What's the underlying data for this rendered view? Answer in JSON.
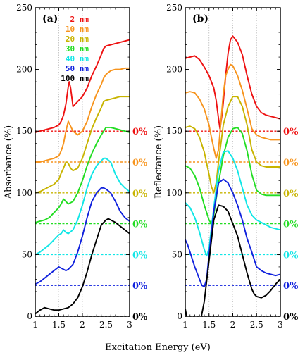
{
  "chart_data": [
    {
      "type": "line",
      "panel_label": "(a)",
      "ylabel": "Absorbance (%)",
      "xlabel": "",
      "xlim": [
        1,
        3
      ],
      "ylim": [
        0,
        250
      ],
      "xticks": [
        "1",
        "1.5",
        "2",
        "2.5",
        "3"
      ],
      "yticks": [
        "0",
        "50",
        "100",
        "150",
        "200",
        "250"
      ],
      "legend_placement": "top-left",
      "grid": "vertical dotted lines",
      "series": [
        {
          "name": "2 nm",
          "color": "#ee1111",
          "baseline": 150,
          "baseline_label": "0%",
          "x": [
            1.0,
            1.1,
            1.2,
            1.3,
            1.4,
            1.5,
            1.55,
            1.6,
            1.65,
            1.7,
            1.72,
            1.75,
            1.8,
            1.9,
            2.0,
            2.1,
            2.2,
            2.3,
            2.4,
            2.45,
            2.5,
            2.6,
            2.7,
            2.8,
            2.9,
            3.0
          ],
          "y": [
            149,
            150,
            151,
            152,
            153,
            155,
            158,
            163,
            172,
            186,
            190,
            185,
            170,
            174,
            178,
            185,
            195,
            203,
            212,
            217,
            219,
            220,
            221,
            222,
            223,
            224
          ]
        },
        {
          "name": "10 nm",
          "color": "#f7941d",
          "baseline": 125,
          "baseline_label": "0%",
          "x": [
            1.0,
            1.1,
            1.2,
            1.3,
            1.4,
            1.5,
            1.55,
            1.6,
            1.65,
            1.7,
            1.75,
            1.8,
            1.9,
            2.0,
            2.1,
            2.2,
            2.3,
            2.4,
            2.45,
            2.5,
            2.6,
            2.7,
            2.8,
            2.9,
            3.0
          ],
          "y": [
            125,
            125,
            126,
            127,
            128,
            130,
            134,
            140,
            150,
            158,
            154,
            150,
            147,
            150,
            158,
            170,
            180,
            188,
            193,
            196,
            199,
            200,
            200,
            201,
            201
          ]
        },
        {
          "name": "20 nm",
          "color": "#c8b400",
          "baseline": 100,
          "baseline_label": "0%",
          "x": [
            1.0,
            1.1,
            1.2,
            1.3,
            1.4,
            1.5,
            1.55,
            1.6,
            1.65,
            1.7,
            1.75,
            1.8,
            1.9,
            2.0,
            2.1,
            2.2,
            2.3,
            2.4,
            2.45,
            2.5,
            2.6,
            2.7,
            2.8,
            2.9,
            3.0
          ],
          "y": [
            100,
            101,
            103,
            105,
            107,
            111,
            116,
            120,
            125,
            124,
            120,
            118,
            120,
            128,
            140,
            152,
            161,
            169,
            174,
            175,
            176,
            177,
            178,
            178,
            178
          ]
        },
        {
          "name": "30 nm",
          "color": "#22dd22",
          "baseline": 75,
          "baseline_label": "0%",
          "x": [
            1.0,
            1.1,
            1.2,
            1.3,
            1.4,
            1.5,
            1.55,
            1.6,
            1.65,
            1.7,
            1.8,
            1.9,
            2.0,
            2.1,
            2.2,
            2.3,
            2.4,
            2.45,
            2.5,
            2.6,
            2.7,
            2.8,
            2.9,
            3.0
          ],
          "y": [
            76,
            77,
            78,
            80,
            84,
            88,
            91,
            95,
            93,
            91,
            93,
            100,
            110,
            122,
            132,
            140,
            147,
            150,
            153,
            153,
            152,
            151,
            150,
            149
          ]
        },
        {
          "name": "40 nm",
          "color": "#11e6e6",
          "baseline": 50,
          "baseline_label": "0%",
          "x": [
            1.0,
            1.1,
            1.2,
            1.3,
            1.4,
            1.5,
            1.55,
            1.6,
            1.65,
            1.7,
            1.8,
            1.9,
            2.0,
            2.1,
            2.2,
            2.3,
            2.4,
            2.45,
            2.5,
            2.6,
            2.7,
            2.8,
            2.9,
            3.0
          ],
          "y": [
            50,
            52,
            55,
            58,
            62,
            66,
            67,
            70,
            68,
            67,
            70,
            78,
            90,
            104,
            115,
            122,
            126,
            128,
            128,
            125,
            115,
            108,
            104,
            101
          ]
        },
        {
          "name": "50 nm",
          "color": "#1122dd",
          "baseline": 25,
          "baseline_label": "0%",
          "x": [
            1.0,
            1.1,
            1.2,
            1.3,
            1.4,
            1.5,
            1.55,
            1.6,
            1.65,
            1.7,
            1.8,
            1.9,
            2.0,
            2.1,
            2.2,
            2.3,
            2.4,
            2.45,
            2.5,
            2.6,
            2.7,
            2.8,
            2.9,
            3.0
          ],
          "y": [
            26,
            28,
            31,
            34,
            37,
            40,
            39,
            38,
            37,
            38,
            42,
            52,
            65,
            80,
            93,
            100,
            104,
            104,
            103,
            100,
            93,
            85,
            80,
            77
          ]
        },
        {
          "name": "100 nm",
          "color": "#000000",
          "baseline": 0,
          "baseline_label": "0%",
          "x": [
            1.0,
            1.1,
            1.2,
            1.3,
            1.4,
            1.5,
            1.6,
            1.7,
            1.8,
            1.9,
            2.0,
            2.1,
            2.2,
            2.3,
            2.4,
            2.5,
            2.55,
            2.6,
            2.7,
            2.8,
            2.9,
            3.0
          ],
          "y": [
            2,
            5,
            7,
            6,
            5,
            5,
            6,
            7,
            10,
            15,
            24,
            36,
            50,
            62,
            74,
            78,
            79,
            78,
            76,
            73,
            70,
            67
          ]
        }
      ]
    },
    {
      "type": "line",
      "panel_label": "(b)",
      "ylabel": "Reflectance (%)",
      "xlabel": "",
      "xlim": [
        1,
        3
      ],
      "ylim": [
        0,
        250
      ],
      "xticks": [
        "1",
        "1.5",
        "2",
        "2.5",
        "3"
      ],
      "yticks": [
        "0",
        "50",
        "100",
        "150",
        "200",
        "250"
      ],
      "grid": "vertical dotted lines",
      "series": [
        {
          "name": "2 nm",
          "color": "#ee1111",
          "baseline": 150,
          "baseline_label": "0%",
          "x": [
            1.0,
            1.1,
            1.2,
            1.3,
            1.4,
            1.5,
            1.6,
            1.65,
            1.7,
            1.73,
            1.78,
            1.85,
            1.9,
            1.95,
            2.0,
            2.1,
            2.2,
            2.3,
            2.4,
            2.5,
            2.6,
            2.7,
            2.8,
            2.9,
            3.0
          ],
          "y": [
            209,
            210,
            211,
            208,
            202,
            195,
            185,
            175,
            160,
            152,
            165,
            195,
            213,
            224,
            227,
            222,
            212,
            195,
            180,
            170,
            165,
            163,
            162,
            161,
            160
          ]
        },
        {
          "name": "10 nm",
          "color": "#f7941d",
          "baseline": 125,
          "baseline_label": "0%",
          "x": [
            1.0,
            1.1,
            1.2,
            1.3,
            1.4,
            1.5,
            1.55,
            1.6,
            1.65,
            1.7,
            1.75,
            1.8,
            1.85,
            1.9,
            1.95,
            2.0,
            2.1,
            2.2,
            2.3,
            2.4,
            2.5,
            2.6,
            2.7,
            2.8,
            2.9,
            3.0
          ],
          "y": [
            181,
            182,
            181,
            176,
            168,
            155,
            145,
            136,
            128,
            135,
            158,
            180,
            195,
            200,
            204,
            203,
            195,
            183,
            168,
            152,
            147,
            145,
            144,
            143,
            143,
            143
          ]
        },
        {
          "name": "20 nm",
          "color": "#c8b400",
          "baseline": 100,
          "baseline_label": "0%",
          "x": [
            1.0,
            1.1,
            1.2,
            1.3,
            1.4,
            1.5,
            1.55,
            1.6,
            1.65,
            1.7,
            1.8,
            1.9,
            2.0,
            2.1,
            2.2,
            2.3,
            2.4,
            2.5,
            2.6,
            2.7,
            2.8,
            2.9,
            3.0
          ],
          "y": [
            153,
            154,
            152,
            145,
            133,
            115,
            105,
            100,
            108,
            125,
            155,
            170,
            178,
            178,
            170,
            155,
            135,
            125,
            122,
            121,
            121,
            121,
            121
          ]
        },
        {
          "name": "30 nm",
          "color": "#22dd22",
          "baseline": 75,
          "baseline_label": "0%",
          "x": [
            1.0,
            1.1,
            1.2,
            1.3,
            1.4,
            1.5,
            1.55,
            1.6,
            1.7,
            1.8,
            1.9,
            2.0,
            2.1,
            2.2,
            2.3,
            2.4,
            2.5,
            2.6,
            2.7,
            2.8,
            2.9,
            3.0
          ],
          "y": [
            122,
            120,
            114,
            104,
            90,
            78,
            75,
            82,
            108,
            130,
            145,
            152,
            153,
            148,
            134,
            115,
            102,
            99,
            98,
            98,
            98,
            98
          ]
        },
        {
          "name": "40 nm",
          "color": "#11e6e6",
          "baseline": 50,
          "baseline_label": "0%",
          "x": [
            1.0,
            1.1,
            1.2,
            1.3,
            1.4,
            1.45,
            1.5,
            1.6,
            1.7,
            1.8,
            1.9,
            2.0,
            2.1,
            2.2,
            2.3,
            2.4,
            2.5,
            2.6,
            2.7,
            2.8,
            2.9,
            3.0
          ],
          "y": [
            92,
            88,
            80,
            68,
            54,
            49,
            55,
            88,
            118,
            133,
            134,
            128,
            118,
            104,
            90,
            82,
            78,
            76,
            74,
            72,
            71,
            70
          ]
        },
        {
          "name": "50 nm",
          "color": "#1122dd",
          "baseline": 25,
          "baseline_label": "0%",
          "x": [
            1.0,
            1.05,
            1.1,
            1.2,
            1.3,
            1.35,
            1.4,
            1.45,
            1.5,
            1.6,
            1.7,
            1.8,
            1.9,
            2.0,
            2.1,
            2.2,
            2.3,
            2.4,
            2.5,
            2.6,
            2.7,
            2.8,
            2.9,
            3.0
          ],
          "y": [
            62,
            58,
            52,
            40,
            30,
            25,
            24,
            30,
            50,
            85,
            108,
            111,
            108,
            100,
            90,
            78,
            63,
            52,
            40,
            37,
            35,
            34,
            33,
            34
          ]
        },
        {
          "name": "100 nm",
          "color": "#000000",
          "baseline": 0,
          "baseline_label": "0%",
          "x": [
            1.0,
            1.03,
            1.06,
            1.1,
            1.15,
            1.2,
            1.3,
            1.4,
            1.5,
            1.6,
            1.7,
            1.8,
            1.9,
            2.0,
            2.1,
            2.2,
            2.3,
            2.4,
            2.45,
            2.5,
            2.6,
            2.7,
            2.8,
            2.9,
            3.0
          ],
          "y": [
            6,
            0,
            -5,
            -12,
            -16,
            -15,
            -8,
            12,
            45,
            78,
            90,
            89,
            85,
            75,
            65,
            50,
            35,
            22,
            18,
            16,
            15,
            17,
            21,
            26,
            30
          ]
        }
      ]
    }
  ],
  "shared_xlabel": "Excitation Energy (eV)"
}
